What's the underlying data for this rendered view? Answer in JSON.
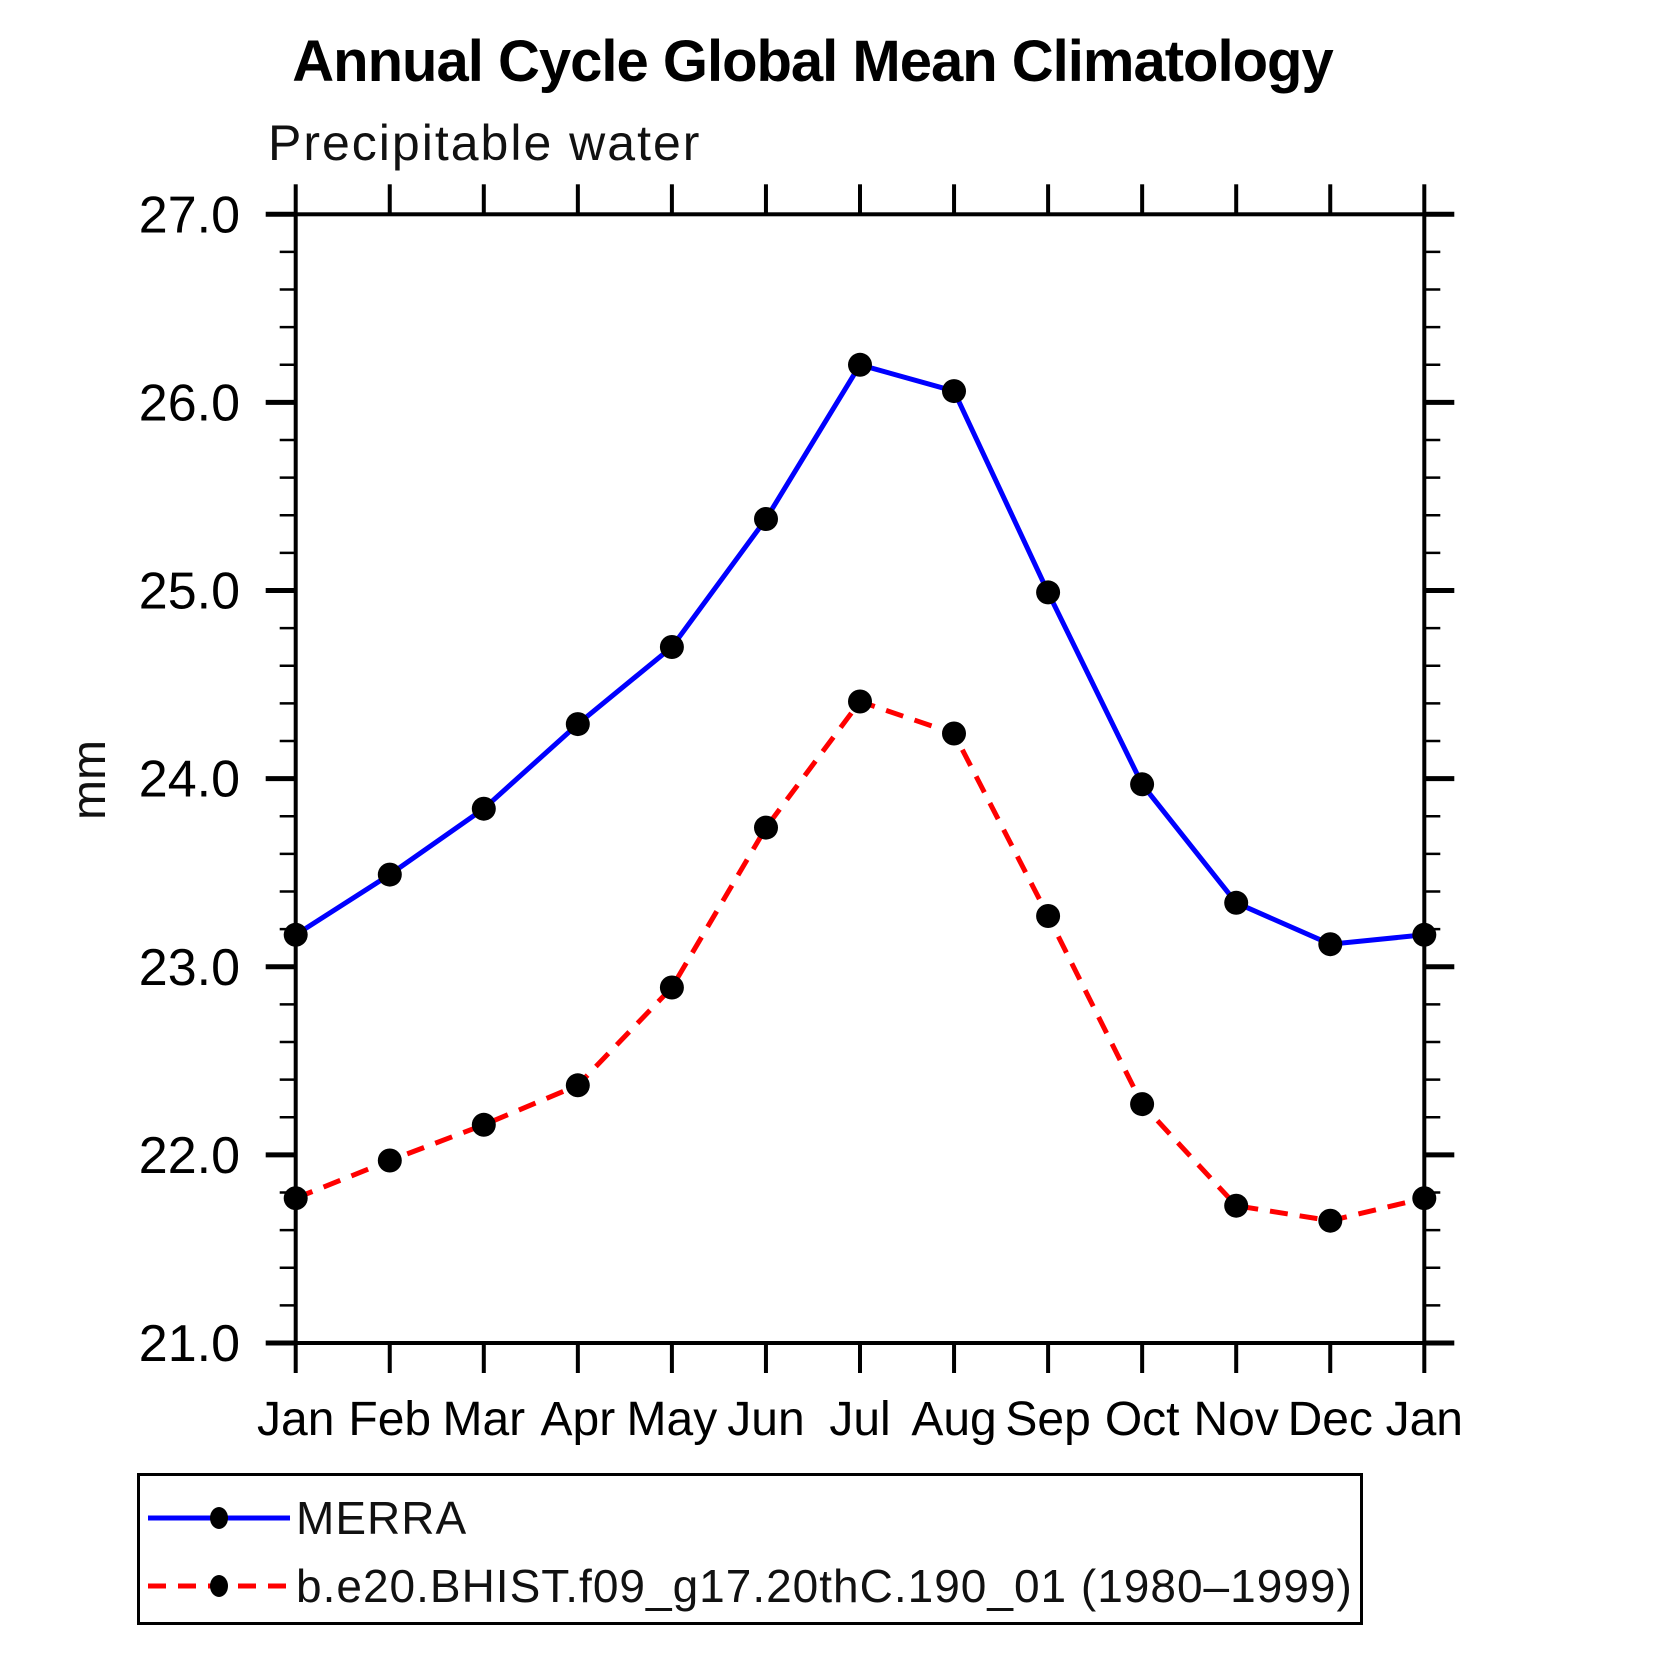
{
  "chart_data": {
    "type": "line",
    "title": "Annual Cycle Global Mean Climatology",
    "subtitle": "Precipitable water",
    "ylabel": "mm",
    "xlabel": "",
    "ylim": [
      21.0,
      27.0
    ],
    "ytick_labels": [
      "21.0",
      "22.0",
      "23.0",
      "24.0",
      "25.0",
      "26.0",
      "27.0"
    ],
    "ytick_minor_step": 0.2,
    "grid": false,
    "legend_position": "bottom",
    "categories": [
      "Jan",
      "Feb",
      "Mar",
      "Apr",
      "May",
      "Jun",
      "Jul",
      "Aug",
      "Sep",
      "Oct",
      "Nov",
      "Dec",
      "Jan"
    ],
    "series": [
      {
        "name": "MERRA",
        "color": "#0000ff",
        "style": "solid",
        "marker": "filled-circle",
        "marker_color": "#000000",
        "values": [
          23.17,
          23.49,
          23.84,
          24.29,
          24.7,
          25.38,
          26.2,
          26.06,
          24.99,
          23.97,
          23.34,
          23.12,
          23.17
        ]
      },
      {
        "name": "b.e20.BHIST.f09_g17.20thC.190_01 (1980–1999)",
        "color": "#ff0000",
        "style": "dashed",
        "marker": "filled-circle",
        "marker_color": "#000000",
        "values": [
          21.77,
          21.97,
          22.16,
          22.37,
          22.89,
          23.74,
          24.41,
          24.24,
          23.27,
          22.27,
          21.73,
          21.65,
          21.77
        ]
      }
    ]
  }
}
